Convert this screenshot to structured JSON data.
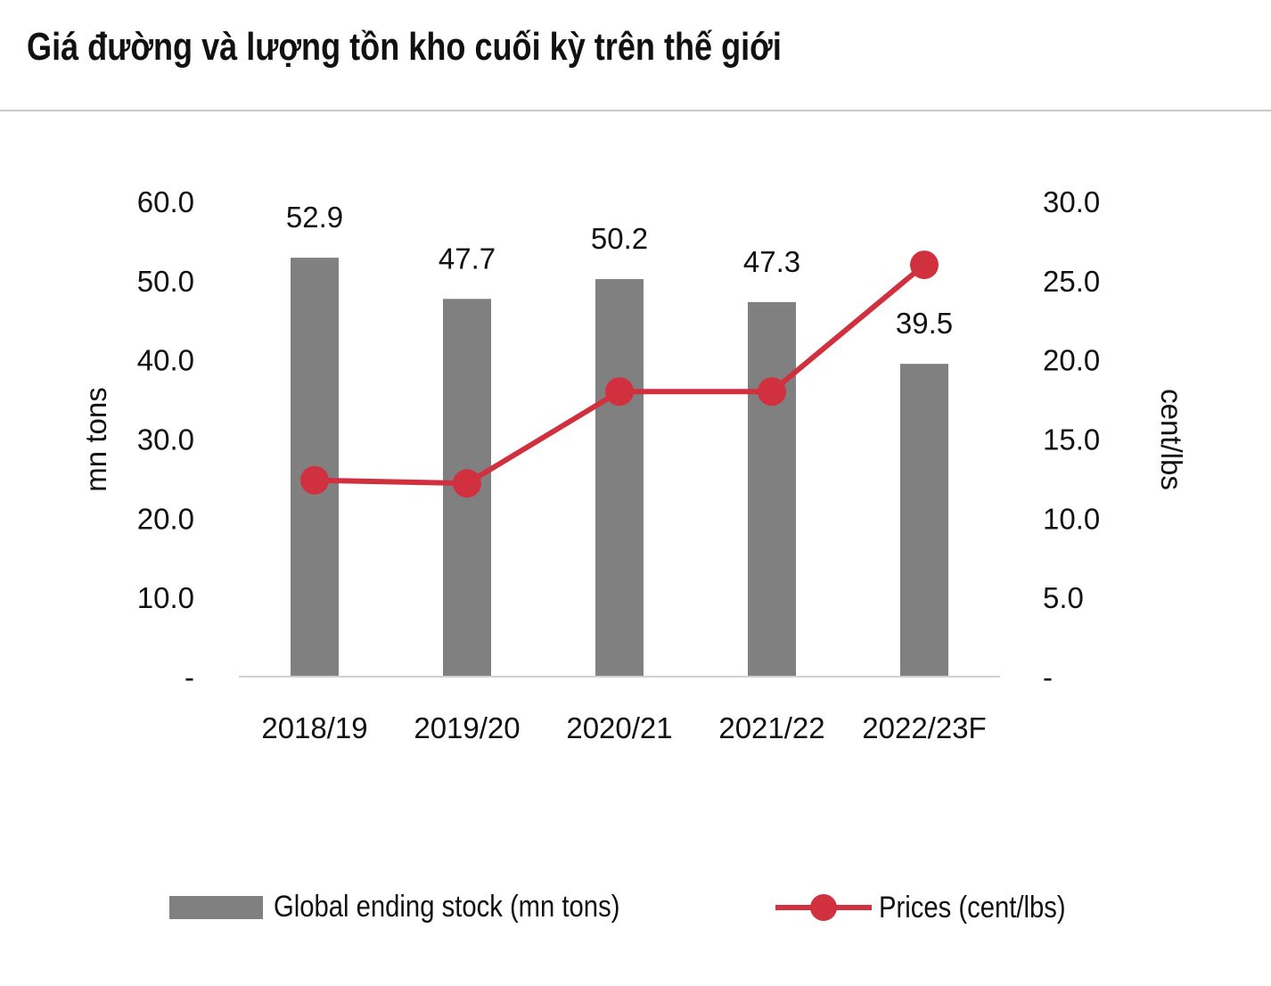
{
  "title": "Giá đường và lượng tồn kho cuối kỳ trên thế giới",
  "chart_data": {
    "type": "bar",
    "categories": [
      "2018/19",
      "2019/20",
      "2020/21",
      "2021/22",
      "2022/23F"
    ],
    "series": [
      {
        "name": "Global ending stock (mn tons)",
        "type": "bar",
        "axis": "left",
        "values": [
          52.9,
          47.7,
          50.2,
          47.3,
          39.5
        ],
        "labels": [
          "52.9",
          "47.7",
          "50.2",
          "47.3",
          "39.5"
        ],
        "color": "#808080"
      },
      {
        "name": "Prices (cent/lbs)",
        "type": "line",
        "axis": "right",
        "values": [
          12.4,
          12.2,
          18.0,
          18.0,
          26.0
        ],
        "color": "#d1303f"
      }
    ],
    "left_axis": {
      "label": "mn tons",
      "ylim": [
        0,
        60
      ],
      "ticks": [
        "-",
        "10.0",
        "20.0",
        "30.0",
        "40.0",
        "50.0",
        "60.0"
      ]
    },
    "right_axis": {
      "label": "cent/lbs",
      "ylim": [
        0,
        30
      ],
      "ticks": [
        "-",
        "5.0",
        "10.0",
        "15.0",
        "20.0",
        "25.0",
        "30.0"
      ]
    },
    "grid": false,
    "legend_position": "bottom"
  }
}
